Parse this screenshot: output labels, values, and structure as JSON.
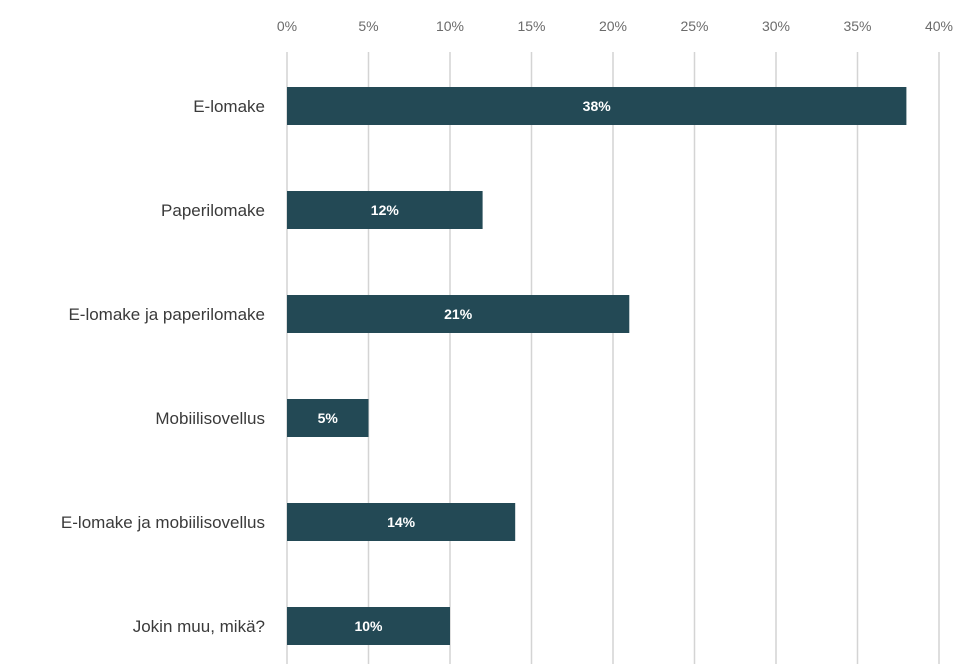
{
  "chart_data": {
    "type": "bar",
    "orientation": "horizontal",
    "categories": [
      "E-lomake",
      "Paperilomake",
      "E-lomake ja paperilomake",
      "Mobiilisovellus",
      "E-lomake ja mobiilisovellus",
      "Jokin muu, mikä?"
    ],
    "values": [
      38,
      12,
      21,
      5,
      14,
      10
    ],
    "data_labels": [
      "38%",
      "12%",
      "21%",
      "5%",
      "14%",
      "10%"
    ],
    "x_ticks": [
      0,
      5,
      10,
      15,
      20,
      25,
      30,
      35,
      40
    ],
    "x_tick_labels": [
      "0%",
      "5%",
      "10%",
      "15%",
      "20%",
      "25%",
      "30%",
      "35%",
      "40%"
    ],
    "xlim": [
      0,
      40
    ],
    "axis_position": "top",
    "grid": true,
    "legend": "none",
    "bar_color": "#234955",
    "title": "",
    "xlabel": "",
    "ylabel": ""
  }
}
